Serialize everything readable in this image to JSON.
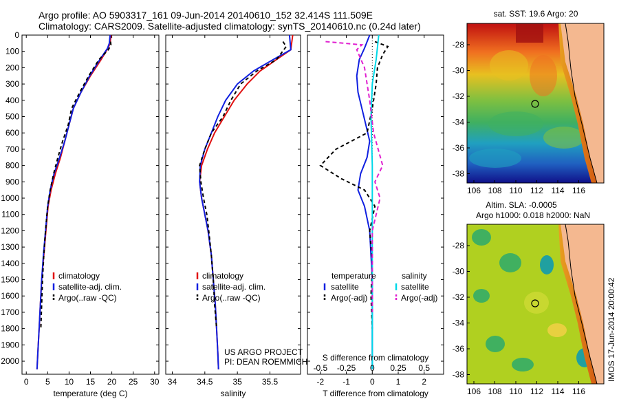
{
  "header": {
    "line1": "Argo profile: AO 5903317_161 09-Jun-2014 20140610_152 32.414S 111.509E",
    "line2": "Climatology: CARS2009. Satellite-adjusted climatology: synTS_20140610.nc (0.24d later)"
  },
  "colors": {
    "climatology": "#e01010",
    "satellite": "#1020e0",
    "argo": "#000000",
    "sat_salinity": "#00d8e8",
    "argo_salinity": "#e020d0"
  },
  "chart_data": [
    {
      "type": "line",
      "xlabel": "temperature (deg C)",
      "ylabel": "",
      "xlim": [
        -1,
        31
      ],
      "ylim": [
        2080,
        0
      ],
      "xticks": [
        0,
        5,
        10,
        15,
        20,
        25,
        30
      ],
      "yticks": [
        0,
        100,
        200,
        300,
        400,
        500,
        600,
        700,
        800,
        900,
        1000,
        1100,
        1200,
        1300,
        1400,
        1500,
        1600,
        1700,
        1800,
        1900,
        2000
      ],
      "legend": [
        "climatology",
        "satellite-adj. clim.",
        "Argo(..raw -QC)"
      ],
      "series": [
        {
          "name": "climatology",
          "color": "#e01010",
          "dash": "",
          "x": [
            19.8,
            19.6,
            19.1,
            17.5,
            15.0,
            12.8,
            11.0,
            10.0,
            9.0,
            8.0,
            6.8,
            5.8,
            5.1,
            4.6,
            4.1,
            3.6,
            3.3,
            3.0,
            2.7,
            2.5
          ],
          "y": [
            0,
            50,
            80,
            150,
            250,
            350,
            450,
            550,
            650,
            750,
            850,
            950,
            1050,
            1200,
            1350,
            1500,
            1650,
            1800,
            1950,
            2050
          ]
        },
        {
          "name": "satellite-adj. clim.",
          "color": "#1020e0",
          "dash": "",
          "x": [
            19.6,
            19.4,
            19.0,
            17.2,
            14.8,
            12.8,
            11.0,
            10.0,
            9.0,
            7.8,
            6.5,
            5.6,
            5.0,
            4.5,
            4.0,
            3.6,
            3.3,
            3.0,
            2.7,
            2.5
          ],
          "y": [
            0,
            50,
            80,
            150,
            250,
            350,
            450,
            550,
            650,
            750,
            850,
            950,
            1050,
            1200,
            1350,
            1500,
            1650,
            1800,
            1950,
            2050
          ]
        },
        {
          "name": "Argo(..raw -QC)",
          "color": "#000000",
          "dash": "5,4",
          "x": [
            19.7,
            19.8,
            19.2,
            17.0,
            14.6,
            12.5,
            10.6,
            9.8,
            8.5,
            7.4,
            6.4,
            5.6,
            5.0,
            4.5,
            4.1,
            3.8,
            3.6,
            3.4
          ],
          "y": [
            40,
            60,
            90,
            150,
            250,
            350,
            450,
            550,
            650,
            750,
            850,
            950,
            1050,
            1200,
            1350,
            1500,
            1650,
            1800
          ]
        }
      ]
    },
    {
      "type": "line",
      "xlabel": "salinity",
      "ylabel": "",
      "xlim": [
        33.9,
        35.97
      ],
      "ylim": [
        2080,
        0
      ],
      "xticks": [
        34,
        34.5,
        35,
        35.5
      ],
      "legend": [
        "climatology",
        "satellite-adj. clim.",
        "Argo(..raw -QC)"
      ],
      "annotation": [
        "US ARGO PROJECT",
        "PI: DEAN ROEMMICH"
      ],
      "series": [
        {
          "name": "climatology",
          "color": "#e01010",
          "dash": "",
          "x": [
            35.85,
            35.82,
            35.6,
            35.35,
            35.15,
            34.95,
            34.8,
            34.65,
            34.54,
            34.45,
            34.42,
            34.45,
            34.5,
            34.55,
            34.6,
            34.63,
            34.66,
            34.68,
            34.7,
            34.71
          ],
          "y": [
            0,
            90,
            150,
            220,
            300,
            400,
            500,
            600,
            700,
            800,
            900,
            1000,
            1100,
            1200,
            1350,
            1500,
            1650,
            1800,
            1950,
            2050
          ]
        },
        {
          "name": "satellite-adj. clim.",
          "color": "#1020e0",
          "dash": "",
          "x": [
            35.8,
            35.82,
            35.55,
            35.25,
            35.0,
            34.82,
            34.7,
            34.6,
            34.5,
            34.43,
            34.42,
            34.45,
            34.5,
            34.55,
            34.6,
            34.63,
            34.66,
            34.68,
            34.7,
            34.71
          ],
          "y": [
            0,
            90,
            150,
            220,
            300,
            400,
            500,
            600,
            700,
            800,
            900,
            1000,
            1100,
            1200,
            1350,
            1500,
            1650,
            1800,
            1950,
            2050
          ]
        },
        {
          "name": "Argo(..raw -QC)",
          "color": "#000000",
          "dash": "5,4",
          "x": [
            35.7,
            35.75,
            35.6,
            35.3,
            35.05,
            34.9,
            34.78,
            34.6,
            34.5,
            34.42,
            34.44,
            34.48,
            34.53,
            34.56,
            34.6,
            34.63,
            34.65,
            34.68
          ],
          "y": [
            40,
            70,
            150,
            220,
            300,
            400,
            500,
            600,
            700,
            800,
            900,
            1000,
            1100,
            1200,
            1350,
            1500,
            1650,
            1800
          ]
        }
      ]
    },
    {
      "type": "line",
      "xlabel": "T difference from climatology",
      "xlabel2": "S difference from climatology",
      "xlim": [
        -2.5,
        2.75
      ],
      "ylim": [
        2080,
        0
      ],
      "xticks": [
        -2,
        -1,
        0,
        1,
        2
      ],
      "sticks": [
        "-0.5",
        "-0.25",
        "0",
        "0.25",
        "0.5"
      ],
      "legend_left": [
        "temperature",
        "satellite",
        "Argo(-adj)"
      ],
      "legend_right": [
        "salinity",
        "satellite",
        "Argo(-adj)"
      ],
      "series": [
        {
          "name": "satellite",
          "color": "#1020e0",
          "dash": "",
          "x": [
            -0.1,
            -0.3,
            -0.5,
            -0.6,
            -0.55,
            -0.4,
            -0.25,
            -0.1,
            -0.2,
            -0.45,
            -0.55,
            -0.3,
            -0.1,
            0,
            0
          ],
          "y": [
            0,
            80,
            150,
            250,
            350,
            450,
            550,
            650,
            750,
            850,
            950,
            1050,
            1200,
            1500,
            2050
          ]
        },
        {
          "name": "Argo(-adj)",
          "color": "#000000",
          "dash": "5,4",
          "x": [
            0.1,
            0.6,
            0.4,
            0.2,
            0.15,
            0.0,
            -0.2,
            -1.4,
            -2.0,
            -1.2,
            -0.3,
            0.1,
            -0.1,
            0,
            -0.05,
            0
          ],
          "y": [
            40,
            70,
            120,
            200,
            300,
            450,
            600,
            700,
            800,
            880,
            950,
            1050,
            1200,
            1400,
            1600,
            1800
          ]
        },
        {
          "name": "satellite",
          "color": "#00d8e8",
          "dash": "",
          "x": [
            0.25,
            0.15,
            0.0,
            -0.05,
            0,
            0,
            0,
            0
          ],
          "y": [
            0,
            150,
            300,
            500,
            800,
            1200,
            1600,
            2050
          ]
        },
        {
          "name": "Argo(-adj)",
          "color": "#e020d0",
          "dash": "6,4",
          "x": [
            -1.8,
            -0.4,
            -0.6,
            -0.3,
            -0.1,
            0.05,
            0.4,
            0.1,
            0.3,
            0,
            0
          ],
          "y": [
            40,
            60,
            90,
            200,
            400,
            600,
            800,
            900,
            1000,
            1200,
            1700
          ]
        }
      ]
    }
  ],
  "maps": {
    "sst_title": "sat. SST: 19.6 Argo: 20",
    "sla_title1": "Altim. SLA: -0.0005",
    "sla_title2": "Argo h1000: 0.018 h2000: NaN",
    "xticks": [
      "106",
      "108",
      "110",
      "112",
      "114",
      "116"
    ],
    "yticks": [
      "-28",
      "-30",
      "-32",
      "-34",
      "-36",
      "-38"
    ],
    "stamp": "IMOS 17-Jun-2014 20:00:42"
  }
}
